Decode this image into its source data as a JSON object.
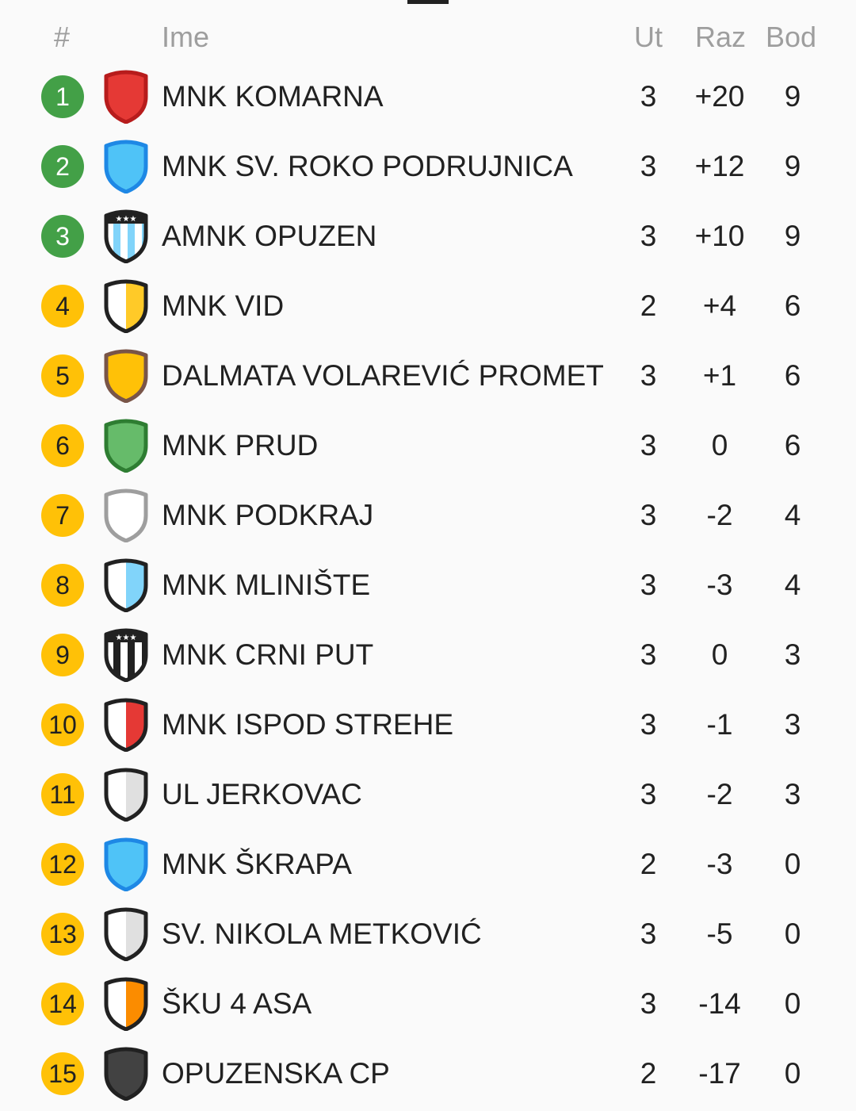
{
  "header": {
    "rank": "#",
    "name": "Ime",
    "played": "Ut",
    "diff": "Raz",
    "points": "Bod"
  },
  "colors": {
    "green": "#43a047",
    "yellow": "#ffc107",
    "text": "#212121",
    "muted": "#9e9e9e"
  },
  "rows": [
    {
      "rank": "1",
      "team": "MNK KOMARNA",
      "played": "3",
      "diff": "+20",
      "points": "9",
      "zone": "green",
      "crest": {
        "type": "solid",
        "fill": "#e53935",
        "border": "#b71c1c"
      }
    },
    {
      "rank": "2",
      "team": "MNK SV. ROKO PODRUJNICA",
      "played": "3",
      "diff": "+12",
      "points": "9",
      "zone": "green",
      "crest": {
        "type": "solid",
        "fill": "#4fc3f7",
        "border": "#1e88e5"
      }
    },
    {
      "rank": "3",
      "team": "AMNK OPUZEN",
      "played": "3",
      "diff": "+10",
      "points": "9",
      "zone": "green",
      "crest": {
        "type": "stripes",
        "fill": "#81d4fa",
        "alt": "#ffffff",
        "border": "#212121",
        "stars": true
      }
    },
    {
      "rank": "4",
      "team": "MNK VID",
      "played": "2",
      "diff": "+4",
      "points": "6",
      "zone": "yellow",
      "crest": {
        "type": "half",
        "fill": "#ffca28",
        "alt": "#ffffff",
        "border": "#212121"
      }
    },
    {
      "rank": "5",
      "team": "DALMATA VOLAREVIĆ PROMET",
      "played": "3",
      "diff": "+1",
      "points": "6",
      "zone": "yellow",
      "crest": {
        "type": "solid",
        "fill": "#ffc107",
        "border": "#795548"
      }
    },
    {
      "rank": "6",
      "team": "MNK PRUD",
      "played": "3",
      "diff": "0",
      "points": "6",
      "zone": "yellow",
      "crest": {
        "type": "solid",
        "fill": "#66bb6a",
        "border": "#2e7d32"
      }
    },
    {
      "rank": "7",
      "team": "MNK PODKRAJ",
      "played": "3",
      "diff": "-2",
      "points": "4",
      "zone": "yellow",
      "crest": {
        "type": "solid",
        "fill": "#ffffff",
        "border": "#9e9e9e"
      }
    },
    {
      "rank": "8",
      "team": "MNK MLINIŠTE",
      "played": "3",
      "diff": "-3",
      "points": "4",
      "zone": "yellow",
      "crest": {
        "type": "half",
        "fill": "#81d4fa",
        "alt": "#ffffff",
        "border": "#212121"
      }
    },
    {
      "rank": "9",
      "team": "MNK CRNI PUT",
      "played": "3",
      "diff": "0",
      "points": "3",
      "zone": "yellow",
      "crest": {
        "type": "stripes",
        "fill": "#212121",
        "alt": "#ffffff",
        "border": "#212121",
        "stars": true
      }
    },
    {
      "rank": "10",
      "team": "MNK ISPOD STREHE",
      "played": "3",
      "diff": "-1",
      "points": "3",
      "zone": "yellow",
      "crest": {
        "type": "half",
        "fill": "#e53935",
        "alt": "#ffffff",
        "border": "#212121"
      }
    },
    {
      "rank": "11",
      "team": "UL JERKOVAC",
      "played": "3",
      "diff": "-2",
      "points": "3",
      "zone": "yellow",
      "crest": {
        "type": "half",
        "fill": "#e0e0e0",
        "alt": "#ffffff",
        "border": "#212121"
      }
    },
    {
      "rank": "12",
      "team": "MNK ŠKRAPA",
      "played": "2",
      "diff": "-3",
      "points": "0",
      "zone": "yellow",
      "crest": {
        "type": "solid",
        "fill": "#4fc3f7",
        "border": "#1e88e5"
      }
    },
    {
      "rank": "13",
      "team": "SV. NIKOLA METKOVIĆ",
      "played": "3",
      "diff": "-5",
      "points": "0",
      "zone": "yellow",
      "crest": {
        "type": "half",
        "fill": "#e0e0e0",
        "alt": "#ffffff",
        "border": "#212121"
      }
    },
    {
      "rank": "14",
      "team": "ŠKU 4 ASA",
      "played": "3",
      "diff": "-14",
      "points": "0",
      "zone": "yellow",
      "crest": {
        "type": "half",
        "fill": "#fb8c00",
        "alt": "#ffffff",
        "border": "#212121"
      }
    },
    {
      "rank": "15",
      "team": "OPUZENSKA CP",
      "played": "2",
      "diff": "-17",
      "points": "0",
      "zone": "yellow",
      "crest": {
        "type": "solid",
        "fill": "#424242",
        "border": "#212121"
      }
    }
  ]
}
